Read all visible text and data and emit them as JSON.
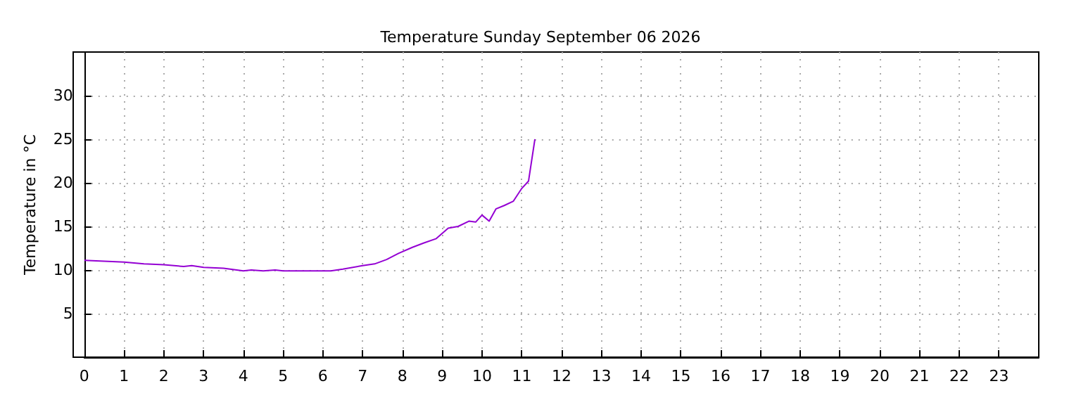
{
  "chart_data": {
    "type": "line",
    "title": "Temperature Sunday September 06 2026",
    "ylabel": "Temperature in °C",
    "xlim": [
      0,
      24
    ],
    "xticks": [
      0,
      1,
      2,
      3,
      4,
      5,
      6,
      7,
      8,
      9,
      10,
      11,
      12,
      13,
      14,
      15,
      16,
      17,
      18,
      19,
      20,
      21,
      22,
      23
    ],
    "ylim": [
      0,
      35
    ],
    "yticks": [
      5,
      10,
      15,
      20,
      25,
      30
    ],
    "grid": true,
    "marker": "none",
    "series": [
      {
        "color": "#9400d3",
        "x": [
          0,
          0.5,
          1,
          1.5,
          2,
          2.5,
          2.7,
          3,
          3.5,
          4,
          4.2,
          4.5,
          4.8,
          5,
          5.5,
          6,
          6.2,
          6.5,
          7,
          7.3,
          7.6,
          7.9,
          8.25,
          8.54,
          8.85,
          9.15,
          9.4,
          9.67,
          9.84,
          10,
          10.18,
          10.35,
          10.56,
          10.79,
          10.99,
          11.17,
          11.33
        ],
        "values": [
          11.1,
          11,
          10.9,
          10.7,
          10.6,
          10.4,
          10.5,
          10.3,
          10.2,
          9.9,
          10,
          9.9,
          10,
          9.9,
          9.9,
          9.9,
          9.9,
          10.1,
          10.5,
          10.7,
          11.2,
          11.9,
          12.6,
          13.1,
          13.6,
          14.8,
          15,
          15.6,
          15.5,
          16.3,
          15.6,
          17,
          17.4,
          17.9,
          19.3,
          20.2,
          25
        ]
      }
    ]
  }
}
